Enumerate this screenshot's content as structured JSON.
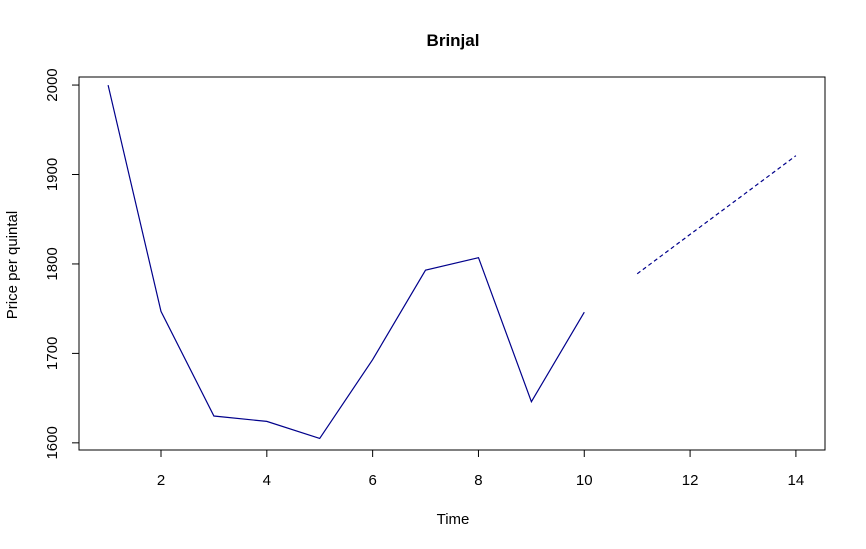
{
  "chart_data": {
    "type": "line",
    "title": "Brinjal",
    "xlabel": "Time",
    "ylabel": "Price per quintal",
    "xlim": [
      0.45,
      14.55
    ],
    "ylim": [
      1592,
      2009
    ],
    "x_ticks": [
      2,
      4,
      6,
      8,
      10,
      12,
      14
    ],
    "y_ticks": [
      1600,
      1700,
      1800,
      1900,
      2000
    ],
    "grid": false,
    "legend": "none",
    "series": [
      {
        "style": "solid",
        "color": "#00008b",
        "x": [
          1,
          2,
          3,
          4,
          5,
          6,
          7,
          8,
          9,
          10
        ],
        "values": [
          2000,
          1747,
          1630,
          1624,
          1605,
          1693,
          1793,
          1807,
          1646,
          1746
        ]
      },
      {
        "style": "dashed",
        "color": "#00008b",
        "x": [
          11,
          12,
          13,
          14
        ],
        "values": [
          1789,
          1833,
          1877,
          1921
        ]
      }
    ]
  }
}
